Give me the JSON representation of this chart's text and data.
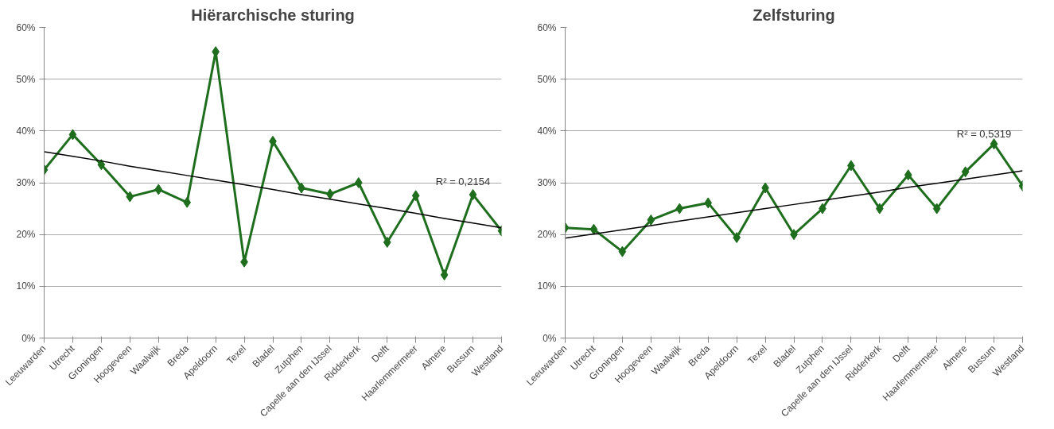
{
  "chart_data": [
    {
      "type": "line",
      "title": "Hiërarchische sturing",
      "categories": [
        "Leeuwarden",
        "Utrecht",
        "Groningen",
        "Hoogeveen",
        "Waalwijk",
        "Breda",
        "Apeldoorn",
        "Texel",
        "Bladel",
        "Zutphen",
        "Capelle aan den IJssel",
        "Ridderkerk",
        "Delft",
        "Haarlemmermeer",
        "Almere",
        "Bussum",
        "Westland"
      ],
      "series": [
        {
          "color": "#1e6e1e",
          "marker": "diamond",
          "values": [
            32.5,
            39.3,
            33.5,
            27.3,
            28.7,
            26.2,
            55.3,
            14.7,
            38,
            29,
            27.8,
            30,
            18.5,
            27.5,
            12.2,
            27.7,
            20.7
          ]
        },
        {
          "color": "#000000",
          "marker": "none",
          "values": [
            36.0,
            35.1,
            34.2,
            33.2,
            32.3,
            31.4,
            30.5,
            29.6,
            28.7,
            27.7,
            26.8,
            25.9,
            25.0,
            24.1,
            23.1,
            22.2,
            21.3
          ]
        }
      ],
      "ylim": [
        0,
        60
      ],
      "yticks": [
        {
          "value": 0,
          "label": "0%"
        },
        {
          "value": 10,
          "label": "10%"
        },
        {
          "value": 20,
          "label": "20%"
        },
        {
          "value": 30,
          "label": "30%"
        },
        {
          "value": 40,
          "label": "40%"
        },
        {
          "value": 50,
          "label": "50%"
        },
        {
          "value": 60,
          "label": "60%"
        }
      ],
      "grid": "y",
      "annotations": [
        "R² = 0,2154"
      ]
    },
    {
      "type": "line",
      "title": "Zelfsturing",
      "categories": [
        "Leeuwarden",
        "Utrecht",
        "Groningen",
        "Hoogeveen",
        "Waalwijk",
        "Breda",
        "Apeldoorn",
        "Texel",
        "Bladel",
        "Zutphen",
        "Capelle aan den IJssel",
        "Ridderkerk",
        "Delft",
        "Haarlemmermeer",
        "Almere",
        "Bussum",
        "Westland"
      ],
      "series": [
        {
          "color": "#1e6e1e",
          "marker": "diamond",
          "values": [
            21.3,
            21,
            16.7,
            22.8,
            25,
            26.1,
            19.4,
            29,
            20,
            25,
            33.3,
            25,
            31.5,
            25,
            32.1,
            37.5,
            29.4
          ]
        },
        {
          "color": "#000000",
          "marker": "none",
          "values": [
            19.3,
            20.1,
            20.9,
            21.7,
            22.6,
            23.4,
            24.2,
            25.0,
            25.8,
            26.6,
            27.4,
            28.2,
            29.1,
            29.9,
            30.7,
            31.5,
            32.3
          ]
        }
      ],
      "ylim": [
        0,
        60
      ],
      "yticks": [
        {
          "value": 0,
          "label": "0%"
        },
        {
          "value": 10,
          "label": "10%"
        },
        {
          "value": 20,
          "label": "20%"
        },
        {
          "value": 30,
          "label": "30%"
        },
        {
          "value": 40,
          "label": "40%"
        },
        {
          "value": 50,
          "label": "50%"
        },
        {
          "value": 60,
          "label": "60%"
        }
      ],
      "grid": "y",
      "annotations": [
        "R² = 0,5319"
      ]
    }
  ]
}
